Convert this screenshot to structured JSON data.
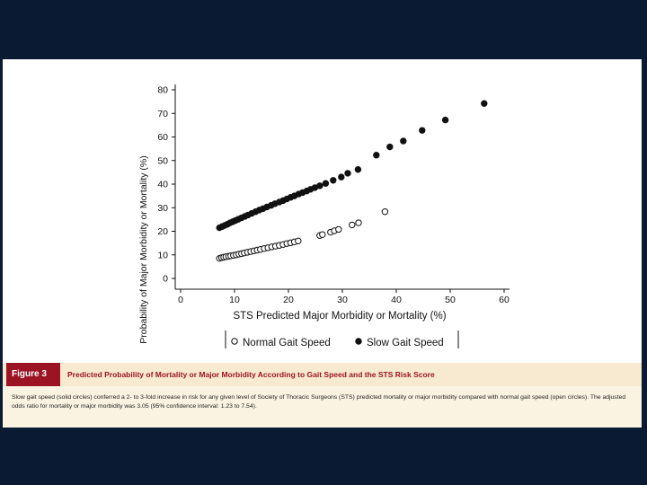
{
  "chart_data": {
    "type": "scatter",
    "xlabel": "STS Predicted Major Morbidity or Mortality (%)",
    "ylabel": "Probability of Major Morbidity or Mortality (%)",
    "xlim": [
      0,
      60
    ],
    "ylim": [
      0,
      80
    ],
    "xticks": [
      0,
      10,
      20,
      30,
      40,
      50,
      60
    ],
    "yticks": [
      0,
      10,
      20,
      30,
      40,
      50,
      60,
      70,
      80
    ],
    "legend_position": "bottom",
    "series": [
      {
        "name": "Normal Gait Speed",
        "marker": "open-circle",
        "x": [
          7.2,
          7.6,
          8.0,
          8.4,
          8.9,
          9.3,
          9.8,
          10.3,
          10.8,
          11.3,
          11.8,
          12.4,
          13.0,
          13.6,
          14.2,
          14.8,
          15.5,
          16.2,
          16.9,
          17.6,
          18.3,
          19.0,
          19.7,
          20.4,
          21.1,
          21.8,
          25.8,
          26.3,
          27.8,
          28.5,
          29.3,
          31.8,
          33.0,
          37.9
        ],
        "y": [
          8.5,
          8.8,
          9.0,
          9.2,
          9.4,
          9.6,
          9.8,
          10.0,
          10.3,
          10.5,
          10.8,
          11.1,
          11.4,
          11.7,
          12.0,
          12.3,
          12.7,
          13.0,
          13.4,
          13.7,
          14.0,
          14.4,
          14.8,
          15.1,
          15.5,
          15.9,
          18.2,
          18.6,
          19.6,
          20.2,
          20.8,
          22.7,
          23.6,
          28.3
        ]
      },
      {
        "name": "Slow Gait Speed",
        "marker": "filled-circle",
        "x": [
          7.2,
          7.7,
          8.2,
          8.7,
          9.2,
          9.7,
          10.2,
          10.7,
          11.3,
          11.9,
          12.5,
          13.2,
          13.9,
          14.6,
          15.3,
          16.0,
          16.8,
          17.5,
          18.3,
          19.0,
          19.7,
          20.4,
          21.1,
          21.9,
          22.6,
          23.4,
          24.1,
          24.9,
          25.8,
          26.9,
          28.3,
          29.8,
          31.0,
          32.9,
          36.3,
          38.8,
          41.3,
          44.8,
          49.1,
          56.3
        ],
        "y": [
          21.5,
          22.0,
          22.5,
          23.0,
          23.6,
          24.1,
          24.6,
          25.1,
          25.7,
          26.3,
          26.9,
          27.6,
          28.3,
          29.0,
          29.6,
          30.3,
          31.0,
          31.7,
          32.4,
          33.0,
          33.7,
          34.4,
          35.0,
          35.8,
          36.4,
          37.1,
          37.8,
          38.5,
          39.3,
          40.3,
          41.6,
          43.0,
          44.6,
          46.2,
          52.3,
          55.8,
          58.3,
          62.8,
          67.2,
          74.2
        ]
      }
    ]
  },
  "figure": {
    "label": "Figure 3",
    "title": "Predicted Probability of Mortality or Major Morbidity According to Gait Speed and the STS Risk Score",
    "caption": "Slow gait speed (solid circles) conferred a 2- to 3-fold increase in risk for any given level of Society of Thoracic Surgeons (STS) predicted mortality or major morbidity compared with normal gait speed (open circles). The adjusted odds ratio for mortality or major morbidity was 3.05 (95% confidence interval: 1.23 to 7.54)."
  },
  "colors": {
    "slide_background": "#0a1a33",
    "figure_label_background": "#9c1424",
    "figure_title_color": "#9c1424",
    "title_bar_background": "#f7ead0",
    "caption_background": "#fbf3e2"
  }
}
